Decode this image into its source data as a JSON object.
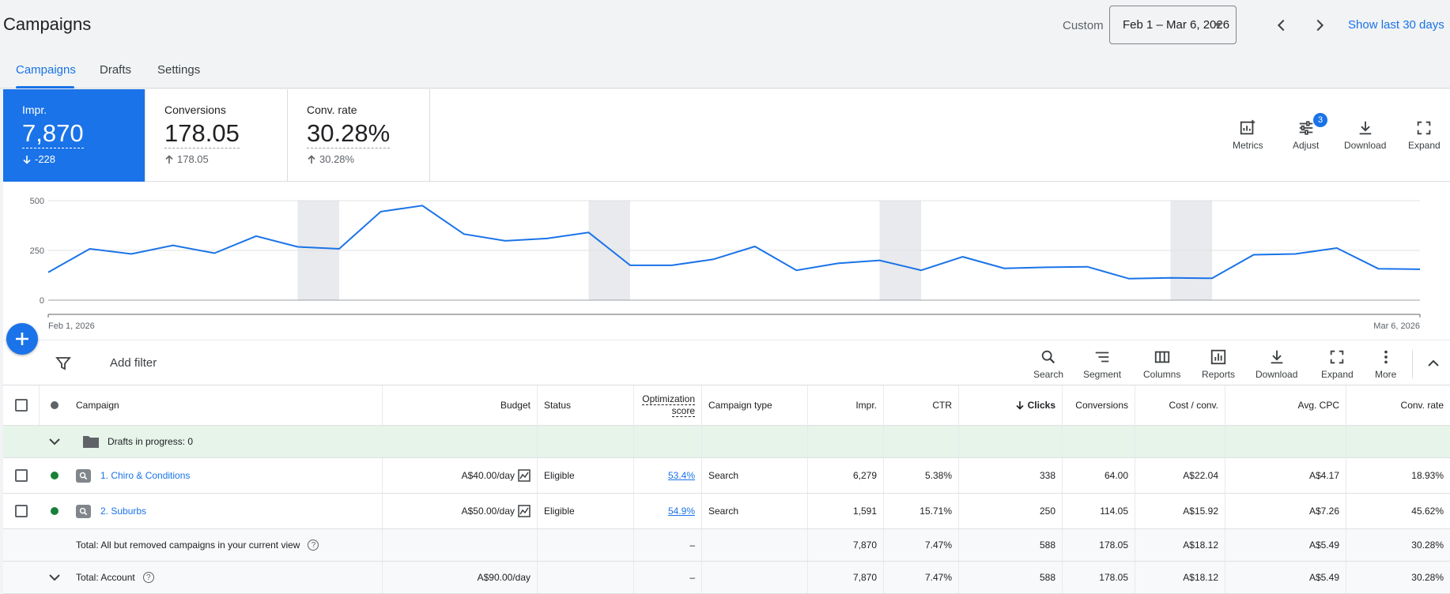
{
  "header": {
    "title": "Campaigns",
    "custom_label": "Custom",
    "date_range": "Feb 1 – Mar 6, 2026",
    "show_last": "Show last 30 days"
  },
  "tabs": [
    {
      "label": "Campaigns",
      "active": true
    },
    {
      "label": "Drafts",
      "active": false
    },
    {
      "label": "Settings",
      "active": false
    }
  ],
  "scorecards": [
    {
      "label": "Impr.",
      "value": "7,870",
      "delta": "-228",
      "direction": "down",
      "active": true
    },
    {
      "label": "Conversions",
      "value": "178.05",
      "delta": "178.05",
      "direction": "up",
      "active": false
    },
    {
      "label": "Conv. rate",
      "value": "30.28%",
      "delta": "30.28%",
      "direction": "up",
      "active": false
    }
  ],
  "chart_tools": {
    "metrics": "Metrics",
    "adjust": "Adjust",
    "adjust_badge": "3",
    "download": "Download",
    "expand": "Expand"
  },
  "chart_data": {
    "type": "line",
    "ylim": [
      0,
      500
    ],
    "yticks": [
      "500",
      "250",
      "0"
    ],
    "x_start_label": "Feb 1, 2026",
    "x_end_label": "Mar 6, 2026",
    "values": [
      140,
      258,
      232,
      275,
      236,
      322,
      268,
      258,
      445,
      475,
      332,
      298,
      310,
      340,
      175,
      175,
      205,
      270,
      150,
      185,
      200,
      150,
      218,
      160,
      165,
      168,
      108,
      112,
      110,
      228,
      232,
      262,
      158,
      155
    ],
    "series_color": "#1a73e8",
    "weekend_bands": [
      [
        6,
        7
      ],
      [
        13,
        14
      ],
      [
        20,
        21
      ],
      [
        27,
        28
      ]
    ]
  },
  "toolbar": {
    "add_filter": "Add filter",
    "search": "Search",
    "segment": "Segment",
    "columns": "Columns",
    "reports": "Reports",
    "download": "Download",
    "expand": "Expand",
    "more": "More"
  },
  "table": {
    "headers": {
      "campaign": "Campaign",
      "budget": "Budget",
      "status": "Status",
      "opt_line1": "Optimization",
      "opt_line2": "score",
      "type": "Campaign type",
      "impr": "Impr.",
      "ctr": "CTR",
      "clicks": "Clicks",
      "conversions": "Conversions",
      "cost_conv": "Cost / conv.",
      "avg_cpc": "Avg. CPC",
      "conv_rate": "Conv. rate"
    },
    "drafts_label": "Drafts in progress: 0",
    "rows": [
      {
        "name": "1. Chiro & Conditions",
        "budget": "A$40.00/day",
        "status": "Eligible",
        "opt": "53.4%",
        "type": "Search",
        "impr": "6,279",
        "ctr": "5.38%",
        "clicks": "338",
        "conversions": "64.00",
        "cost_conv": "A$22.04",
        "avg_cpc": "A$4.17",
        "conv_rate": "18.93%"
      },
      {
        "name": "2. Suburbs",
        "budget": "A$50.00/day",
        "status": "Eligible",
        "opt": "54.9%",
        "type": "Search",
        "impr": "1,591",
        "ctr": "15.71%",
        "clicks": "250",
        "conversions": "114.05",
        "cost_conv": "A$15.92",
        "avg_cpc": "A$7.26",
        "conv_rate": "45.62%"
      }
    ],
    "totals": [
      {
        "label": "Total: All but removed campaigns in your current view",
        "budget": "",
        "opt": "–",
        "impr": "7,870",
        "ctr": "7.47%",
        "clicks": "588",
        "conversions": "178.05",
        "cost_conv": "A$18.12",
        "avg_cpc": "A$5.49",
        "conv_rate": "30.28%"
      },
      {
        "label": "Total: Account",
        "budget": "A$90.00/day",
        "opt": "–",
        "impr": "7,870",
        "ctr": "7.47%",
        "clicks": "588",
        "conversions": "178.05",
        "cost_conv": "A$18.12",
        "avg_cpc": "A$5.49",
        "conv_rate": "30.28%"
      }
    ]
  },
  "colors": {
    "accent": "#1a73e8",
    "status_enabled": "#188038",
    "drafts_bg": "#e6f4ea"
  }
}
